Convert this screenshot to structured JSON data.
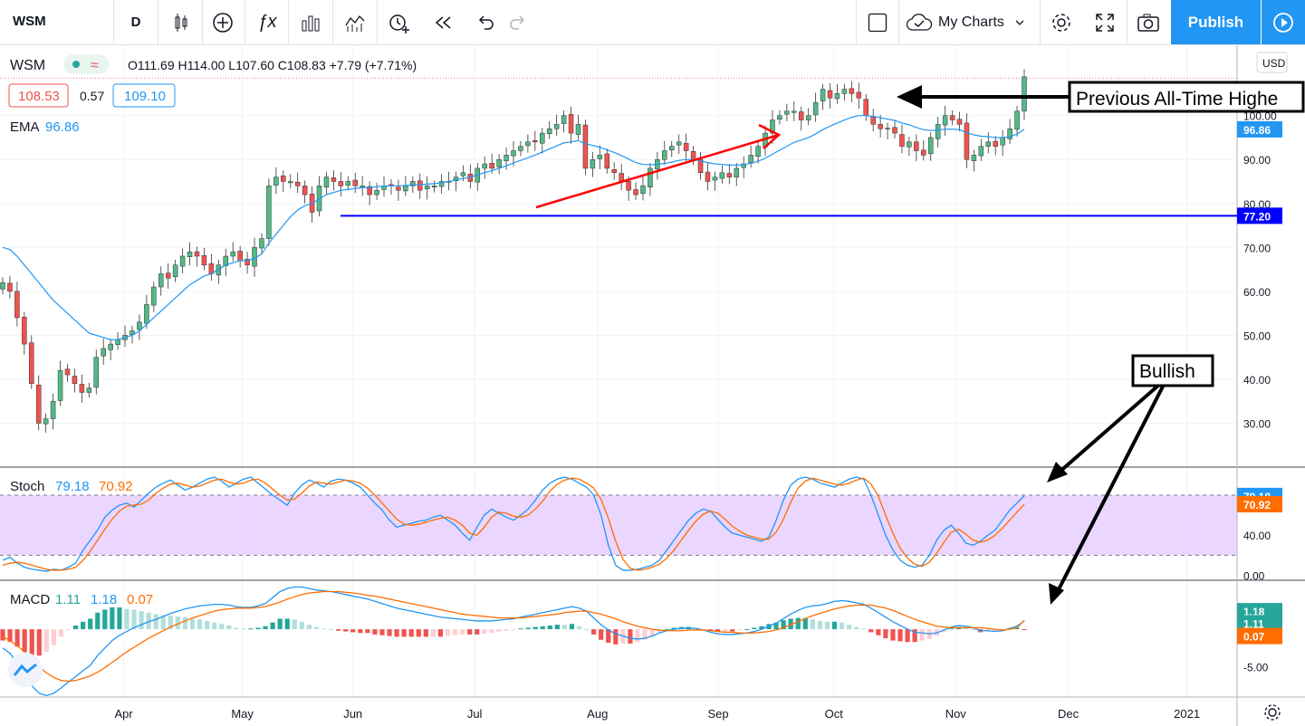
{
  "toolbar": {
    "symbol": "WSM",
    "interval": "D",
    "my_charts": "My Charts",
    "publish": "Publish"
  },
  "legend": {
    "symbol": "WSM",
    "ohlc": "O111.69 H114.00 L107.60 C108.83 +7.79 (+7.71%)",
    "bid": "108.53",
    "spread": "0.57",
    "ask": "109.10",
    "ema_label": "EMA",
    "ema_value": "96.86",
    "currency": "USD"
  },
  "stoch_legend": {
    "label": "Stoch",
    "k": "79.18",
    "d": "70.92"
  },
  "macd_legend": {
    "label": "MACD",
    "macd": "1.11",
    "signal": "1.18",
    "hist": "0.07"
  },
  "annotations": {
    "callout_ath": "Previous All-Time Highe",
    "callout_bullish": "Bullish"
  },
  "colors": {
    "up": "#26a69a",
    "up_body": "#53b987",
    "down": "#ef5350",
    "ema": "#2196f3",
    "support": "#0000ff",
    "stoch_k": "#2196f3",
    "stoch_d": "#ff6d00",
    "stoch_band": "#e6ccff",
    "arrow_red": "#ff0000"
  },
  "chart_data": [
    {
      "type": "candlestick",
      "title": "WSM",
      "ylim": [
        20,
        116
      ],
      "y_ticks": [
        "30.00",
        "40.00",
        "50.00",
        "60.00",
        "70.00",
        "80.00",
        "90.00",
        "100.00"
      ],
      "x_labels": [
        "Apr",
        "May",
        "Jun",
        "Jul",
        "Aug",
        "Sep",
        "Oct",
        "Nov",
        "Dec",
        "2021"
      ],
      "closes": [
        62,
        60,
        54,
        48,
        39,
        30,
        31,
        35,
        42,
        41,
        39,
        37,
        38,
        45,
        47,
        48,
        49,
        50,
        51,
        53,
        57,
        61,
        64,
        63,
        66,
        68,
        69,
        68,
        66,
        64,
        66,
        68,
        69,
        67,
        66,
        70,
        72,
        84,
        86,
        85,
        85,
        84,
        82,
        78,
        84,
        86,
        85,
        84,
        85,
        84,
        84,
        82,
        83,
        84,
        84,
        83,
        84,
        85,
        83,
        84,
        84,
        85,
        85,
        86,
        87,
        85,
        88,
        89,
        88,
        90,
        91,
        92,
        93,
        94,
        94,
        96,
        97,
        98,
        100,
        96,
        98,
        88,
        90,
        91,
        88,
        87,
        85,
        83,
        82,
        84,
        88,
        90,
        92,
        93,
        94,
        92,
        90,
        87,
        85,
        86,
        87,
        86,
        88,
        89,
        91,
        93,
        96,
        99,
        100,
        101,
        101,
        99,
        100,
        103,
        106,
        104,
        105,
        106,
        105,
        104,
        100,
        98,
        97,
        97,
        96,
        93,
        94,
        92,
        91,
        95,
        98,
        100,
        99,
        98,
        90,
        91,
        93,
        94,
        93,
        95,
        97,
        101,
        108.83
      ],
      "ema": [
        70,
        69.5,
        68,
        66,
        64,
        62,
        60,
        58,
        56.5,
        55,
        53.5,
        52,
        50.5,
        50,
        49.5,
        49,
        49,
        49.5,
        50,
        51,
        52.5,
        54,
        55.5,
        57,
        58.5,
        60,
        61.5,
        62.5,
        63.5,
        64,
        65,
        66,
        66.5,
        67,
        67,
        67.5,
        68.5,
        71,
        73,
        75,
        77,
        78.5,
        79.5,
        80,
        81,
        82,
        82.5,
        83,
        83.2,
        83.4,
        83.6,
        83.6,
        83.8,
        84,
        84,
        84,
        84.1,
        84.2,
        84.3,
        84.4,
        84.5,
        84.7,
        85,
        85.3,
        85.7,
        86,
        86.5,
        87,
        87.5,
        88,
        88.6,
        89.2,
        89.8,
        90.4,
        91,
        91.7,
        92.4,
        93.1,
        93.8,
        94,
        94.3,
        93.6,
        93.2,
        92.8,
        92.2,
        91.6,
        90.9,
        90.1,
        89.3,
        88.9,
        88.8,
        88.9,
        89.1,
        89.4,
        89.8,
        90,
        90,
        89.7,
        89.3,
        89,
        88.9,
        88.7,
        88.7,
        88.9,
        89.1,
        89.6,
        90.3,
        91.2,
        92.1,
        93,
        93.9,
        94.4,
        95,
        95.8,
        96.8,
        97.6,
        98.3,
        99,
        99.6,
        100,
        100,
        99.8,
        99.5,
        99.2,
        98.9,
        98.3,
        97.9,
        97.3,
        96.8,
        96.6,
        96.7,
        96.9,
        96.9,
        96.8,
        96.1,
        95.6,
        95.3,
        95.2,
        95,
        95,
        95.2,
        95.8,
        96.86
      ],
      "support_level": 77.2,
      "previous_ath": 108.0,
      "last_price_label": "96.86"
    },
    {
      "type": "line",
      "title": "Stoch",
      "ylim": [
        0,
        100
      ],
      "y_ticks": [
        "0.00",
        "40.00"
      ],
      "bands": [
        20,
        80
      ],
      "k": [
        15,
        18,
        12,
        8,
        6,
        5,
        4,
        6,
        5,
        8,
        12,
        25,
        35,
        45,
        58,
        65,
        70,
        72,
        68,
        75,
        82,
        88,
        92,
        95,
        90,
        85,
        88,
        92,
        96,
        98,
        94,
        88,
        92,
        96,
        98,
        92,
        86,
        80,
        75,
        70,
        82,
        90,
        95,
        92,
        88,
        94,
        96,
        95,
        92,
        88,
        80,
        72,
        65,
        55,
        48,
        50,
        52,
        54,
        55,
        58,
        60,
        55,
        50,
        42,
        35,
        48,
        60,
        66,
        62,
        58,
        55,
        60,
        66,
        75,
        85,
        92,
        96,
        98,
        96,
        92,
        88,
        80,
        60,
        30,
        10,
        5,
        5,
        6,
        8,
        10,
        15,
        25,
        35,
        45,
        55,
        62,
        66,
        64,
        56,
        48,
        42,
        40,
        38,
        36,
        34,
        38,
        55,
        75,
        90,
        96,
        98,
        96,
        92,
        90,
        88,
        92,
        96,
        98,
        96,
        80,
        60,
        40,
        25,
        15,
        10,
        8,
        10,
        20,
        35,
        45,
        50,
        42,
        32,
        30,
        34,
        40,
        45,
        55,
        65,
        72,
        79.18
      ],
      "d": [
        10,
        12,
        13,
        12,
        10,
        8,
        6,
        5,
        5,
        6,
        8,
        15,
        24,
        35,
        46,
        56,
        64,
        69,
        70,
        71,
        75,
        82,
        87,
        91,
        92,
        90,
        88,
        89,
        92,
        95,
        96,
        93,
        91,
        92,
        95,
        96,
        92,
        86,
        80,
        75,
        76,
        82,
        89,
        93,
        92,
        91,
        93,
        95,
        94,
        92,
        87,
        80,
        72,
        64,
        56,
        51,
        50,
        51,
        53,
        55,
        57,
        58,
        55,
        50,
        42,
        40,
        48,
        58,
        63,
        62,
        59,
        58,
        60,
        66,
        74,
        84,
        91,
        95,
        97,
        96,
        92,
        87,
        76,
        57,
        34,
        16,
        7,
        5,
        6,
        8,
        11,
        17,
        25,
        35,
        45,
        54,
        61,
        64,
        62,
        56,
        49,
        44,
        40,
        38,
        36,
        36,
        43,
        56,
        73,
        87,
        94,
        97,
        95,
        93,
        91,
        90,
        92,
        95,
        97,
        91,
        79,
        60,
        42,
        27,
        17,
        11,
        9,
        13,
        22,
        33,
        43,
        46,
        41,
        35,
        33,
        35,
        40,
        47,
        55,
        63,
        70.92
      ]
    },
    {
      "type": "bar",
      "title": "MACD",
      "ylim": [
        -9,
        6.5
      ],
      "y_ticks": [
        "-5.00"
      ],
      "macd": [
        -2.5,
        -3.2,
        -4.5,
        -6,
        -7.5,
        -8.5,
        -8.8,
        -8.5,
        -7.8,
        -7,
        -6.3,
        -5.5,
        -4.8,
        -3.5,
        -2.5,
        -1.5,
        -0.8,
        -0.3,
        0.2,
        0.6,
        1,
        1.3,
        1.7,
        2.1,
        2.4,
        2.7,
        2.9,
        3.1,
        3.2,
        3.3,
        3.3,
        3.2,
        3.0,
        2.9,
        2.9,
        3.1,
        3.4,
        4.2,
        5.0,
        5.4,
        5.6,
        5.6,
        5.4,
        5.2,
        5.1,
        5.0,
        4.8,
        4.6,
        4.4,
        4.2,
        4.0,
        3.7,
        3.4,
        3.1,
        2.8,
        2.6,
        2.4,
        2.2,
        2.0,
        1.8,
        1.6,
        1.5,
        1.4,
        1.3,
        1.2,
        1.1,
        1.1,
        1.1,
        1.2,
        1.3,
        1.4,
        1.6,
        1.8,
        2.0,
        2.2,
        2.4,
        2.6,
        2.8,
        3.0,
        2.8,
        2.4,
        1.5,
        0.6,
        -0.1,
        -0.6,
        -0.9,
        -1.2,
        -1.3,
        -1.2,
        -0.9,
        -0.5,
        -0.2,
        0,
        0.1,
        0.2,
        0.1,
        -0.1,
        -0.4,
        -0.6,
        -0.7,
        -0.7,
        -0.6,
        -0.5,
        -0.3,
        0,
        0.4,
        0.8,
        1.4,
        2.0,
        2.5,
        2.9,
        3.1,
        3.2,
        3.4,
        3.7,
        3.8,
        3.7,
        3.5,
        3.3,
        2.8,
        2.2,
        1.6,
        1.0,
        0.5,
        0.0,
        -0.4,
        -0.5,
        -0.6,
        -0.5,
        -0.1,
        0.3,
        0.5,
        0.4,
        0.2,
        -0.2,
        -0.2,
        -0.3,
        -0.2,
        0.1,
        0.4,
        1.11
      ],
      "signal": [
        -1,
        -1.5,
        -2.2,
        -3,
        -4,
        -5,
        -5.8,
        -6.4,
        -6.8,
        -6.9,
        -6.8,
        -6.5,
        -6.2,
        -5.7,
        -5.1,
        -4.4,
        -3.7,
        -3.0,
        -2.4,
        -1.8,
        -1.2,
        -0.7,
        -0.2,
        0.3,
        0.7,
        1.1,
        1.5,
        1.8,
        2.1,
        2.4,
        2.6,
        2.7,
        2.8,
        2.8,
        2.8,
        2.9,
        3.0,
        3.3,
        3.6,
        4.0,
        4.3,
        4.6,
        4.8,
        4.9,
        5.0,
        5.0,
        5.0,
        4.9,
        4.8,
        4.7,
        4.5,
        4.4,
        4.2,
        4.0,
        3.8,
        3.6,
        3.4,
        3.2,
        3.0,
        2.8,
        2.6,
        2.4,
        2.2,
        2.0,
        1.9,
        1.8,
        1.7,
        1.6,
        1.5,
        1.5,
        1.5,
        1.5,
        1.6,
        1.7,
        1.8,
        1.9,
        2.0,
        2.2,
        2.3,
        2.4,
        2.4,
        2.2,
        2.0,
        1.7,
        1.4,
        1.0,
        0.7,
        0.4,
        0.2,
        0.0,
        -0.1,
        -0.2,
        -0.2,
        -0.2,
        -0.1,
        -0.1,
        -0.1,
        -0.2,
        -0.3,
        -0.4,
        -0.4,
        -0.5,
        -0.5,
        -0.5,
        -0.4,
        -0.3,
        -0.1,
        0.2,
        0.6,
        1.0,
        1.4,
        1.8,
        2.1,
        2.4,
        2.7,
        2.9,
        3.1,
        3.2,
        3.2,
        3.2,
        3.0,
        2.8,
        2.5,
        2.1,
        1.7,
        1.3,
        1.0,
        0.7,
        0.4,
        0.3,
        0.2,
        0.2,
        0.2,
        0.2,
        0.2,
        0.1,
        0.0,
        -0.1,
        0.0,
        0.2,
        1.18
      ],
      "last_labels": [
        "1.18",
        "1.11",
        "0.07"
      ]
    }
  ]
}
